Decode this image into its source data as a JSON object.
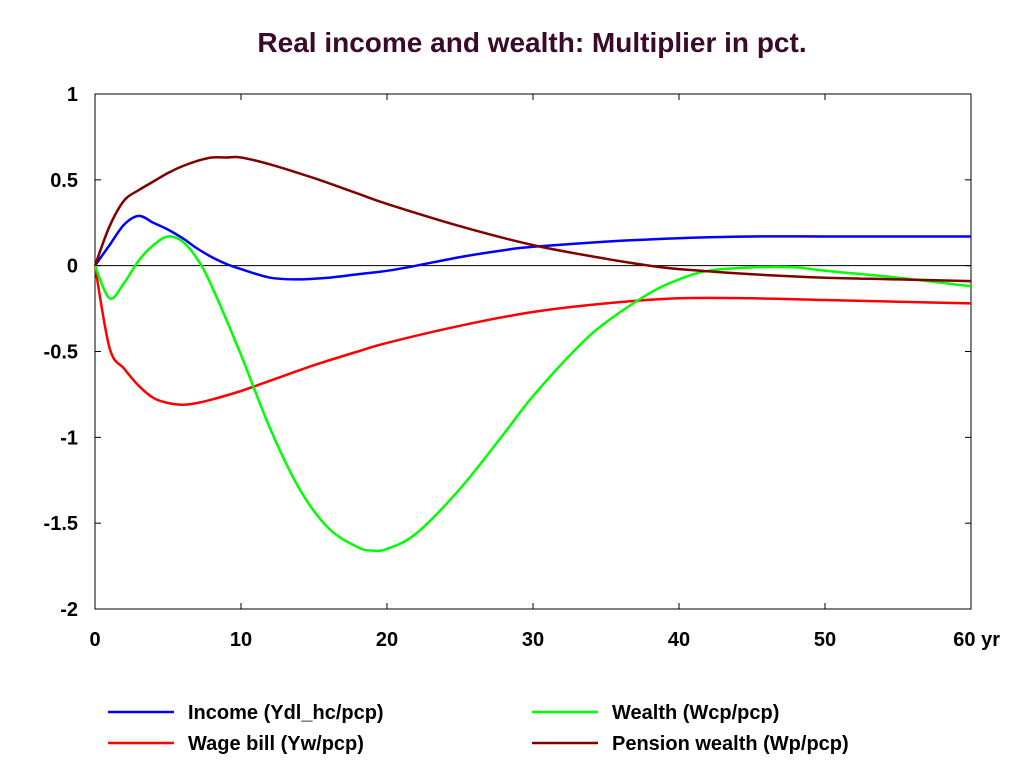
{
  "chart_data": {
    "type": "line",
    "title": "Real income and wealth: Multiplier in pct.",
    "x_unit": "yr",
    "xlim": [
      0,
      60
    ],
    "ylim": [
      -2,
      1
    ],
    "x_ticks": [
      0,
      10,
      20,
      30,
      40,
      50,
      60
    ],
    "x_tick_labels": [
      "0",
      "10",
      "20",
      "30",
      "40",
      "50",
      "60 yr"
    ],
    "y_ticks": [
      1,
      0.5,
      0,
      -0.5,
      -1,
      -1.5,
      -2
    ],
    "y_tick_labels": [
      "1",
      "0.5",
      "0",
      "-0.5",
      "-1",
      "-1.5",
      "-2"
    ],
    "zero_line": true,
    "grid": false,
    "legend_position": "bottom",
    "series": [
      {
        "name": "Income (Ydl_hc/pcp)",
        "color": "#0000ff",
        "x": [
          0,
          1,
          2,
          3,
          4,
          5,
          6,
          7,
          8,
          9,
          10,
          12,
          14,
          16,
          18,
          20,
          22,
          25,
          28,
          30,
          35,
          40,
          45,
          50,
          55,
          60
        ],
        "y": [
          0,
          0.12,
          0.24,
          0.29,
          0.25,
          0.21,
          0.16,
          0.1,
          0.05,
          0.01,
          -0.02,
          -0.07,
          -0.08,
          -0.07,
          -0.05,
          -0.03,
          0,
          0.05,
          0.09,
          0.11,
          0.14,
          0.16,
          0.17,
          0.17,
          0.17,
          0.17
        ]
      },
      {
        "name": "Wage bill (Yw/pcp)",
        "color": "#ff0000",
        "x": [
          0,
          1,
          2,
          3,
          4,
          5,
          6,
          7,
          8,
          10,
          12,
          15,
          18,
          20,
          25,
          30,
          35,
          40,
          45,
          50,
          55,
          60
        ],
        "y": [
          0,
          -0.48,
          -0.6,
          -0.7,
          -0.77,
          -0.8,
          -0.81,
          -0.8,
          -0.78,
          -0.73,
          -0.67,
          -0.58,
          -0.5,
          -0.45,
          -0.35,
          -0.27,
          -0.22,
          -0.19,
          -0.19,
          -0.2,
          -0.21,
          -0.22
        ]
      },
      {
        "name": "Wealth (Wcp/pcp)",
        "color": "#00ff00",
        "x": [
          0,
          1,
          2,
          3,
          4,
          5,
          6,
          7,
          8,
          10,
          12,
          14,
          16,
          18,
          19,
          20,
          22,
          25,
          28,
          30,
          33,
          35,
          38,
          40,
          42,
          45,
          48,
          50,
          55,
          60
        ],
        "y": [
          0,
          -0.19,
          -0.1,
          0.03,
          0.12,
          0.17,
          0.14,
          0.04,
          -0.12,
          -0.52,
          -0.95,
          -1.3,
          -1.53,
          -1.64,
          -1.66,
          -1.65,
          -1.56,
          -1.3,
          -0.98,
          -0.76,
          -0.48,
          -0.33,
          -0.16,
          -0.08,
          -0.03,
          -0.01,
          -0.01,
          -0.03,
          -0.07,
          -0.12
        ]
      },
      {
        "name": "Pension wealth (Wp/pcp)",
        "color": "#800000",
        "x": [
          0,
          1,
          2,
          3,
          4,
          5,
          6,
          7,
          8,
          9,
          10,
          12,
          15,
          18,
          20,
          25,
          30,
          35,
          38,
          40,
          45,
          50,
          55,
          60
        ],
        "y": [
          0,
          0.23,
          0.38,
          0.44,
          0.49,
          0.54,
          0.58,
          0.61,
          0.63,
          0.63,
          0.63,
          0.59,
          0.51,
          0.42,
          0.36,
          0.23,
          0.12,
          0.04,
          0,
          -0.02,
          -0.05,
          -0.07,
          -0.08,
          -0.09
        ]
      }
    ]
  }
}
